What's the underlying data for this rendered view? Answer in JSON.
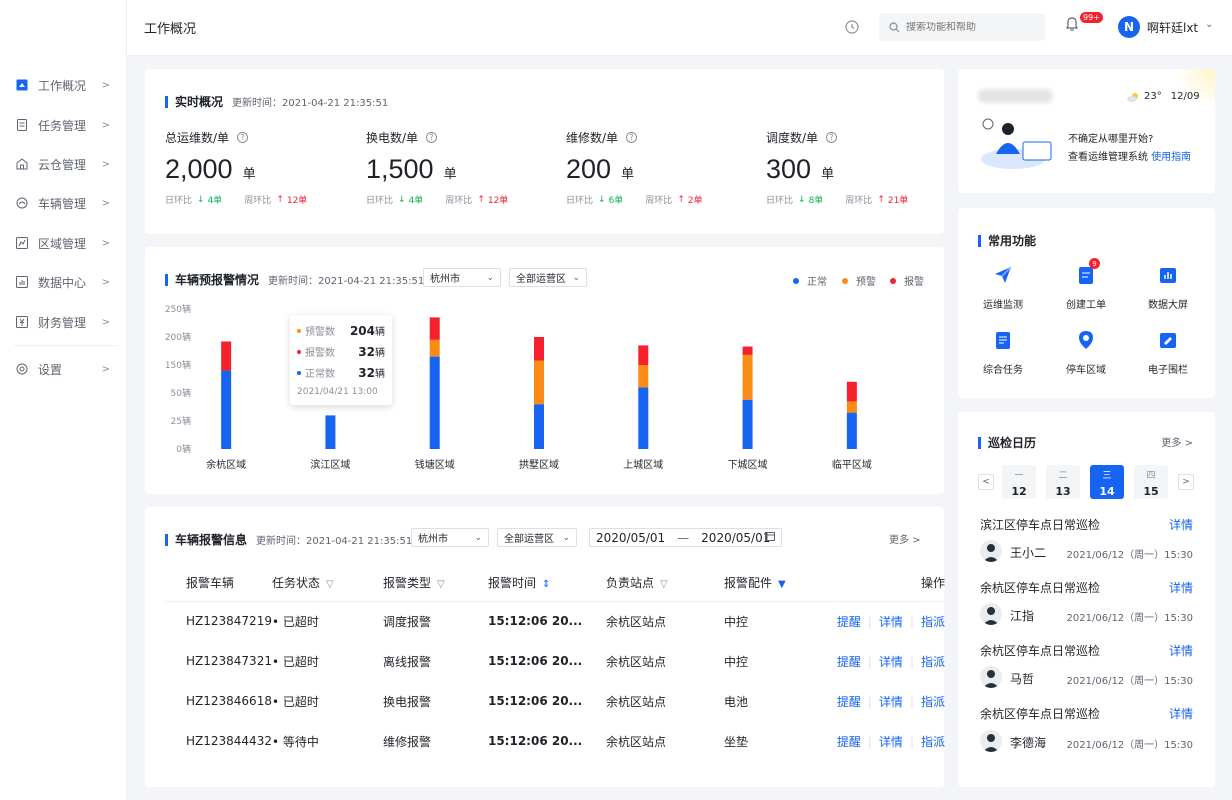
{
  "header": {
    "page_title": "工作概况",
    "search_placeholder": "搜索功能和帮助",
    "notification_count": "99+",
    "avatar_letter": "N",
    "username": "啊轩廷lxt"
  },
  "sidebar": {
    "items": [
      {
        "label": "工作概况",
        "icon": "dashboard-icon"
      },
      {
        "label": "任务管理",
        "icon": "task-icon"
      },
      {
        "label": "云仓管理",
        "icon": "warehouse-icon"
      },
      {
        "label": "车辆管理",
        "icon": "vehicle-icon"
      },
      {
        "label": "区域管理",
        "icon": "region-icon"
      },
      {
        "label": "数据中心",
        "icon": "data-icon"
      },
      {
        "label": "财务管理",
        "icon": "finance-icon"
      }
    ],
    "settings_label": "设置"
  },
  "realtime": {
    "title": "实时概况",
    "updated": "更新时间：2021-04-21 21:35:51",
    "stats": [
      {
        "label": "总运维数/单",
        "value": "2,000",
        "unit": "单",
        "day_label": "日环比",
        "day_value": "4单",
        "week_label": "周环比",
        "week_value": "12单"
      },
      {
        "label": "换电数/单",
        "value": "1,500",
        "unit": "单",
        "day_label": "日环比",
        "day_value": "4单",
        "week_label": "周环比",
        "week_value": "12单"
      },
      {
        "label": "维修数/单",
        "value": "200",
        "unit": "单",
        "day_label": "日环比",
        "day_value": "6单",
        "week_label": "周环比",
        "week_value": "2单"
      },
      {
        "label": "调度数/单",
        "value": "300",
        "unit": "单",
        "day_label": "日环比",
        "day_value": "8单",
        "week_label": "周环比",
        "week_value": "21单"
      }
    ]
  },
  "warning": {
    "title": "车辆预报警情况",
    "updated": "更新时间：2021-04-21 21:35:51",
    "city": "杭州市",
    "area": "全部运营区",
    "legend": [
      "正常",
      "预警",
      "报警"
    ],
    "tooltip": {
      "rows": [
        {
          "label": "预警数",
          "value": "204",
          "unit": "辆"
        },
        {
          "label": "报警数",
          "value": "32",
          "unit": "辆"
        },
        {
          "label": "正常数",
          "value": "32",
          "unit": "辆"
        }
      ],
      "time": "2021/04/21 13:00"
    }
  },
  "chart_data": {
    "type": "bar",
    "stacked": true,
    "categories": [
      "余杭区域",
      "滨江区域",
      "钱塘区域",
      "拱墅区域",
      "上城区域",
      "下城区域",
      "临平区域"
    ],
    "series": [
      {
        "name": "正常",
        "color": "#1763f2",
        "values": [
          140,
          60,
          165,
          80,
          110,
          88,
          65
        ]
      },
      {
        "name": "预警",
        "color": "#fa8c16",
        "values": [
          0,
          0,
          30,
          78,
          40,
          80,
          20
        ]
      },
      {
        "name": "报警",
        "color": "#f5222d",
        "values": [
          52,
          0,
          40,
          42,
          35,
          15,
          35
        ]
      }
    ],
    "y_ticks": [
      "0辆",
      "25辆",
      "50辆",
      "150辆",
      "200辆",
      "250辆"
    ],
    "ylim": [
      0,
      250
    ]
  },
  "alarm_table": {
    "title": "车辆报警信息",
    "updated": "更新时间：2021-04-21 21:35:51",
    "city": "杭州市",
    "area": "全部运营区",
    "date_start": "2020/05/01",
    "date_end": "2020/05/01",
    "more": "更多",
    "columns": [
      "报警车辆",
      "任务状态",
      "报警类型",
      "报警时间",
      "负责站点",
      "报警配件",
      "操作"
    ],
    "rows": [
      {
        "vehicle": "HZ123847219",
        "status": "已超时",
        "status_type": "overdue",
        "type": "调度报警",
        "time": "15:12:06 20...",
        "station": "余杭区站点",
        "part": "中控"
      },
      {
        "vehicle": "HZ123847321",
        "status": "已超时",
        "status_type": "overdue",
        "type": "离线报警",
        "time": "15:12:06 20...",
        "station": "余杭区站点",
        "part": "中控"
      },
      {
        "vehicle": "HZ123846618",
        "status": "已超时",
        "status_type": "overdue",
        "type": "换电报警",
        "time": "15:12:06 20...",
        "station": "余杭区站点",
        "part": "电池"
      },
      {
        "vehicle": "HZ123844432",
        "status": "等待中",
        "status_type": "waiting",
        "type": "维修报警",
        "time": "15:12:06 20...",
        "station": "余杭区站点",
        "part": "坐垫"
      }
    ],
    "actions": [
      "提醒",
      "详情",
      "指派"
    ]
  },
  "welcome": {
    "temperature": "23°",
    "date": "12/09",
    "line1": "不确定从哪里开始?",
    "line2": "查看运维管理系统",
    "guide_link": "使用指南"
  },
  "functions": {
    "title": "常用功能",
    "items": [
      {
        "label": "运维监测",
        "icon": "monitor-icon"
      },
      {
        "label": "创建工单",
        "icon": "create-order-icon",
        "badge": "9"
      },
      {
        "label": "数据大屏",
        "icon": "data-screen-icon"
      },
      {
        "label": "综合任务",
        "icon": "task-list-icon"
      },
      {
        "label": "停车区域",
        "icon": "parking-icon"
      },
      {
        "label": "电子围栏",
        "icon": "fence-icon"
      }
    ]
  },
  "calendar": {
    "title": "巡检日历",
    "more": "更多",
    "days": [
      {
        "weekday": "一",
        "day": "12"
      },
      {
        "weekday": "二",
        "day": "13"
      },
      {
        "weekday": "三",
        "day": "14",
        "active": true
      },
      {
        "weekday": "四",
        "day": "15"
      }
    ],
    "inspections": [
      {
        "title": "滨江区停车点日常巡检",
        "detail": "详情",
        "name": "王小二",
        "date": "2021/06/12（周一）15:30"
      },
      {
        "title": "余杭区停车点日常巡检",
        "detail": "详情",
        "name": "江指",
        "date": "2021/06/12（周一）15:30"
      },
      {
        "title": "余杭区停车点日常巡检",
        "detail": "详情",
        "name": "马哲",
        "date": "2021/06/12（周一）15:30"
      },
      {
        "title": "余杭区停车点日常巡检",
        "detail": "详情",
        "name": "李德海",
        "date": "2021/06/12（周一）15:30"
      }
    ]
  }
}
